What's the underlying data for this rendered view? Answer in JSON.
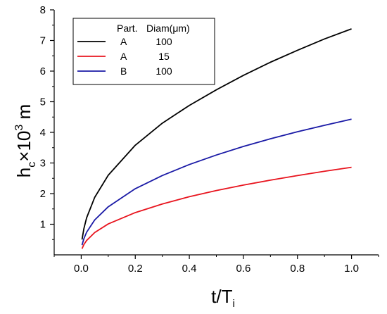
{
  "chart_data": {
    "type": "line",
    "xlabel": "t/T",
    "xlabel_sub": "i",
    "ylabel_main": "h",
    "ylabel_sub": "c",
    "ylabel_mid": "×10",
    "ylabel_sup": "3",
    "ylabel_unit": " m",
    "xlim": [
      -0.1,
      1.1
    ],
    "ylim": [
      0,
      8
    ],
    "x_ticks": [
      0.0,
      0.2,
      0.4,
      0.6,
      0.8,
      1.0
    ],
    "x_tick_labels": [
      "0.0",
      "0.2",
      "0.4",
      "0.6",
      "0.8",
      "1.0"
    ],
    "y_ticks": [
      1,
      2,
      3,
      4,
      5,
      6,
      7,
      8
    ],
    "y_tick_labels": [
      "1",
      "2",
      "3",
      "4",
      "5",
      "6",
      "7",
      "8"
    ],
    "grid": false,
    "legend": {
      "placement": "top-left",
      "header_part": "Part.",
      "header_diam": "Diam(μm)",
      "entries": [
        {
          "part": "A",
          "diam": "100",
          "color": "#000000"
        },
        {
          "part": "A",
          "diam": "15",
          "color": "#e8141e"
        },
        {
          "part": "B",
          "diam": "100",
          "color": "#1a1aa6"
        }
      ]
    },
    "x": [
      0.003,
      0.01,
      0.02,
      0.05,
      0.1,
      0.2,
      0.3,
      0.4,
      0.5,
      0.6,
      0.7,
      0.8,
      0.9,
      1.0
    ],
    "series": [
      {
        "color": "#000000",
        "values": [
          0.5,
          0.86,
          1.21,
          1.88,
          2.6,
          3.58,
          4.3,
          4.88,
          5.39,
          5.86,
          6.29,
          6.68,
          7.05,
          7.38
        ]
      },
      {
        "color": "#e8141e",
        "values": [
          0.2,
          0.34,
          0.47,
          0.73,
          1.01,
          1.38,
          1.66,
          1.9,
          2.1,
          2.28,
          2.44,
          2.59,
          2.73,
          2.86
        ]
      },
      {
        "color": "#1a1aa6",
        "values": [
          0.32,
          0.53,
          0.74,
          1.14,
          1.57,
          2.16,
          2.59,
          2.95,
          3.26,
          3.54,
          3.79,
          4.02,
          4.23,
          4.43
        ]
      }
    ]
  }
}
